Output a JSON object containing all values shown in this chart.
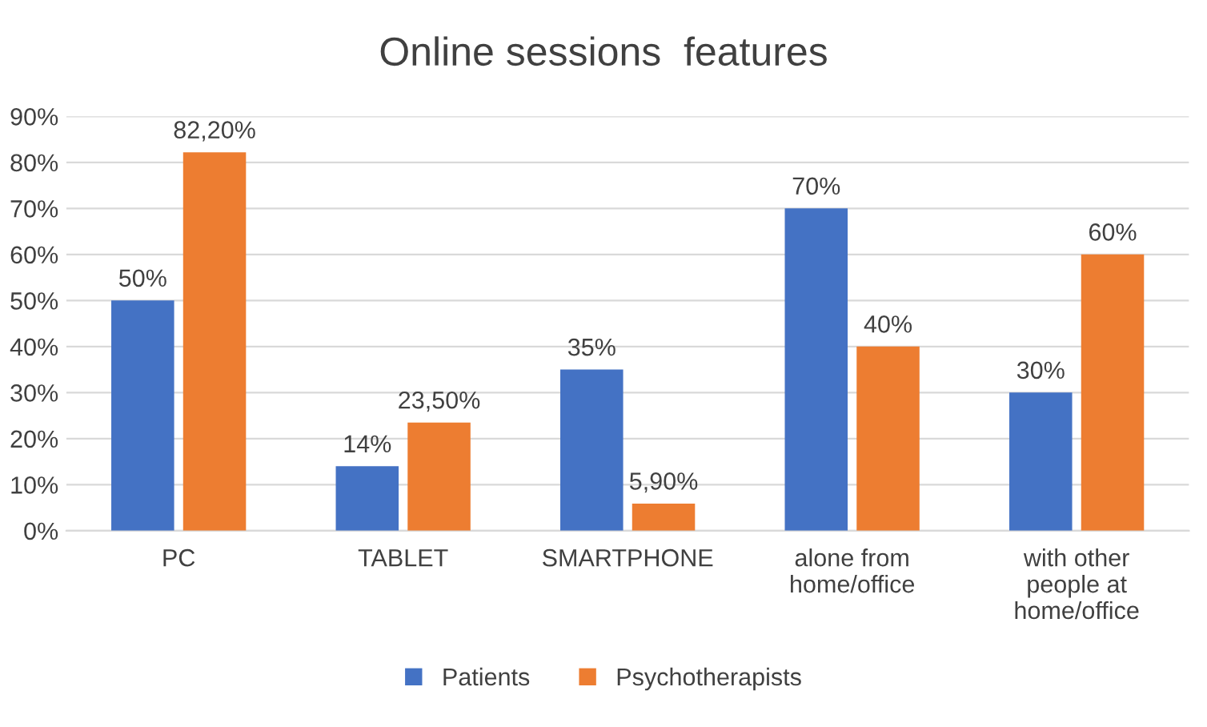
{
  "chart_data": {
    "type": "bar",
    "title": "Online sessions  features",
    "categories": [
      "PC",
      "TABLET",
      "SMARTPHONE",
      "alone from\nhome/office",
      "with other\npeople at\nhome/office"
    ],
    "series": [
      {
        "name": "Patients",
        "color": "#4472c4",
        "values": [
          50,
          14,
          35,
          70,
          30
        ],
        "value_labels": [
          "50%",
          "14%",
          "35%",
          "70%",
          "30%"
        ]
      },
      {
        "name": "Psychotherapists",
        "color": "#ed7d31",
        "values": [
          82.2,
          23.5,
          5.9,
          40,
          60
        ],
        "value_labels": [
          "82,20%",
          "23,50%",
          "5,90%",
          "40%",
          "60%"
        ]
      }
    ],
    "ylim": [
      0,
      90
    ],
    "yticks": [
      {
        "value": 0,
        "label": "0%"
      },
      {
        "value": 10,
        "label": "10%"
      },
      {
        "value": 20,
        "label": "20%"
      },
      {
        "value": 30,
        "label": "30%"
      },
      {
        "value": 40,
        "label": "40%"
      },
      {
        "value": 50,
        "label": "50%"
      },
      {
        "value": 60,
        "label": "60%"
      },
      {
        "value": 70,
        "label": "70%"
      },
      {
        "value": 80,
        "label": "80%"
      },
      {
        "value": 90,
        "label": "90%"
      }
    ],
    "grid": "y",
    "legend": "bottom"
  }
}
